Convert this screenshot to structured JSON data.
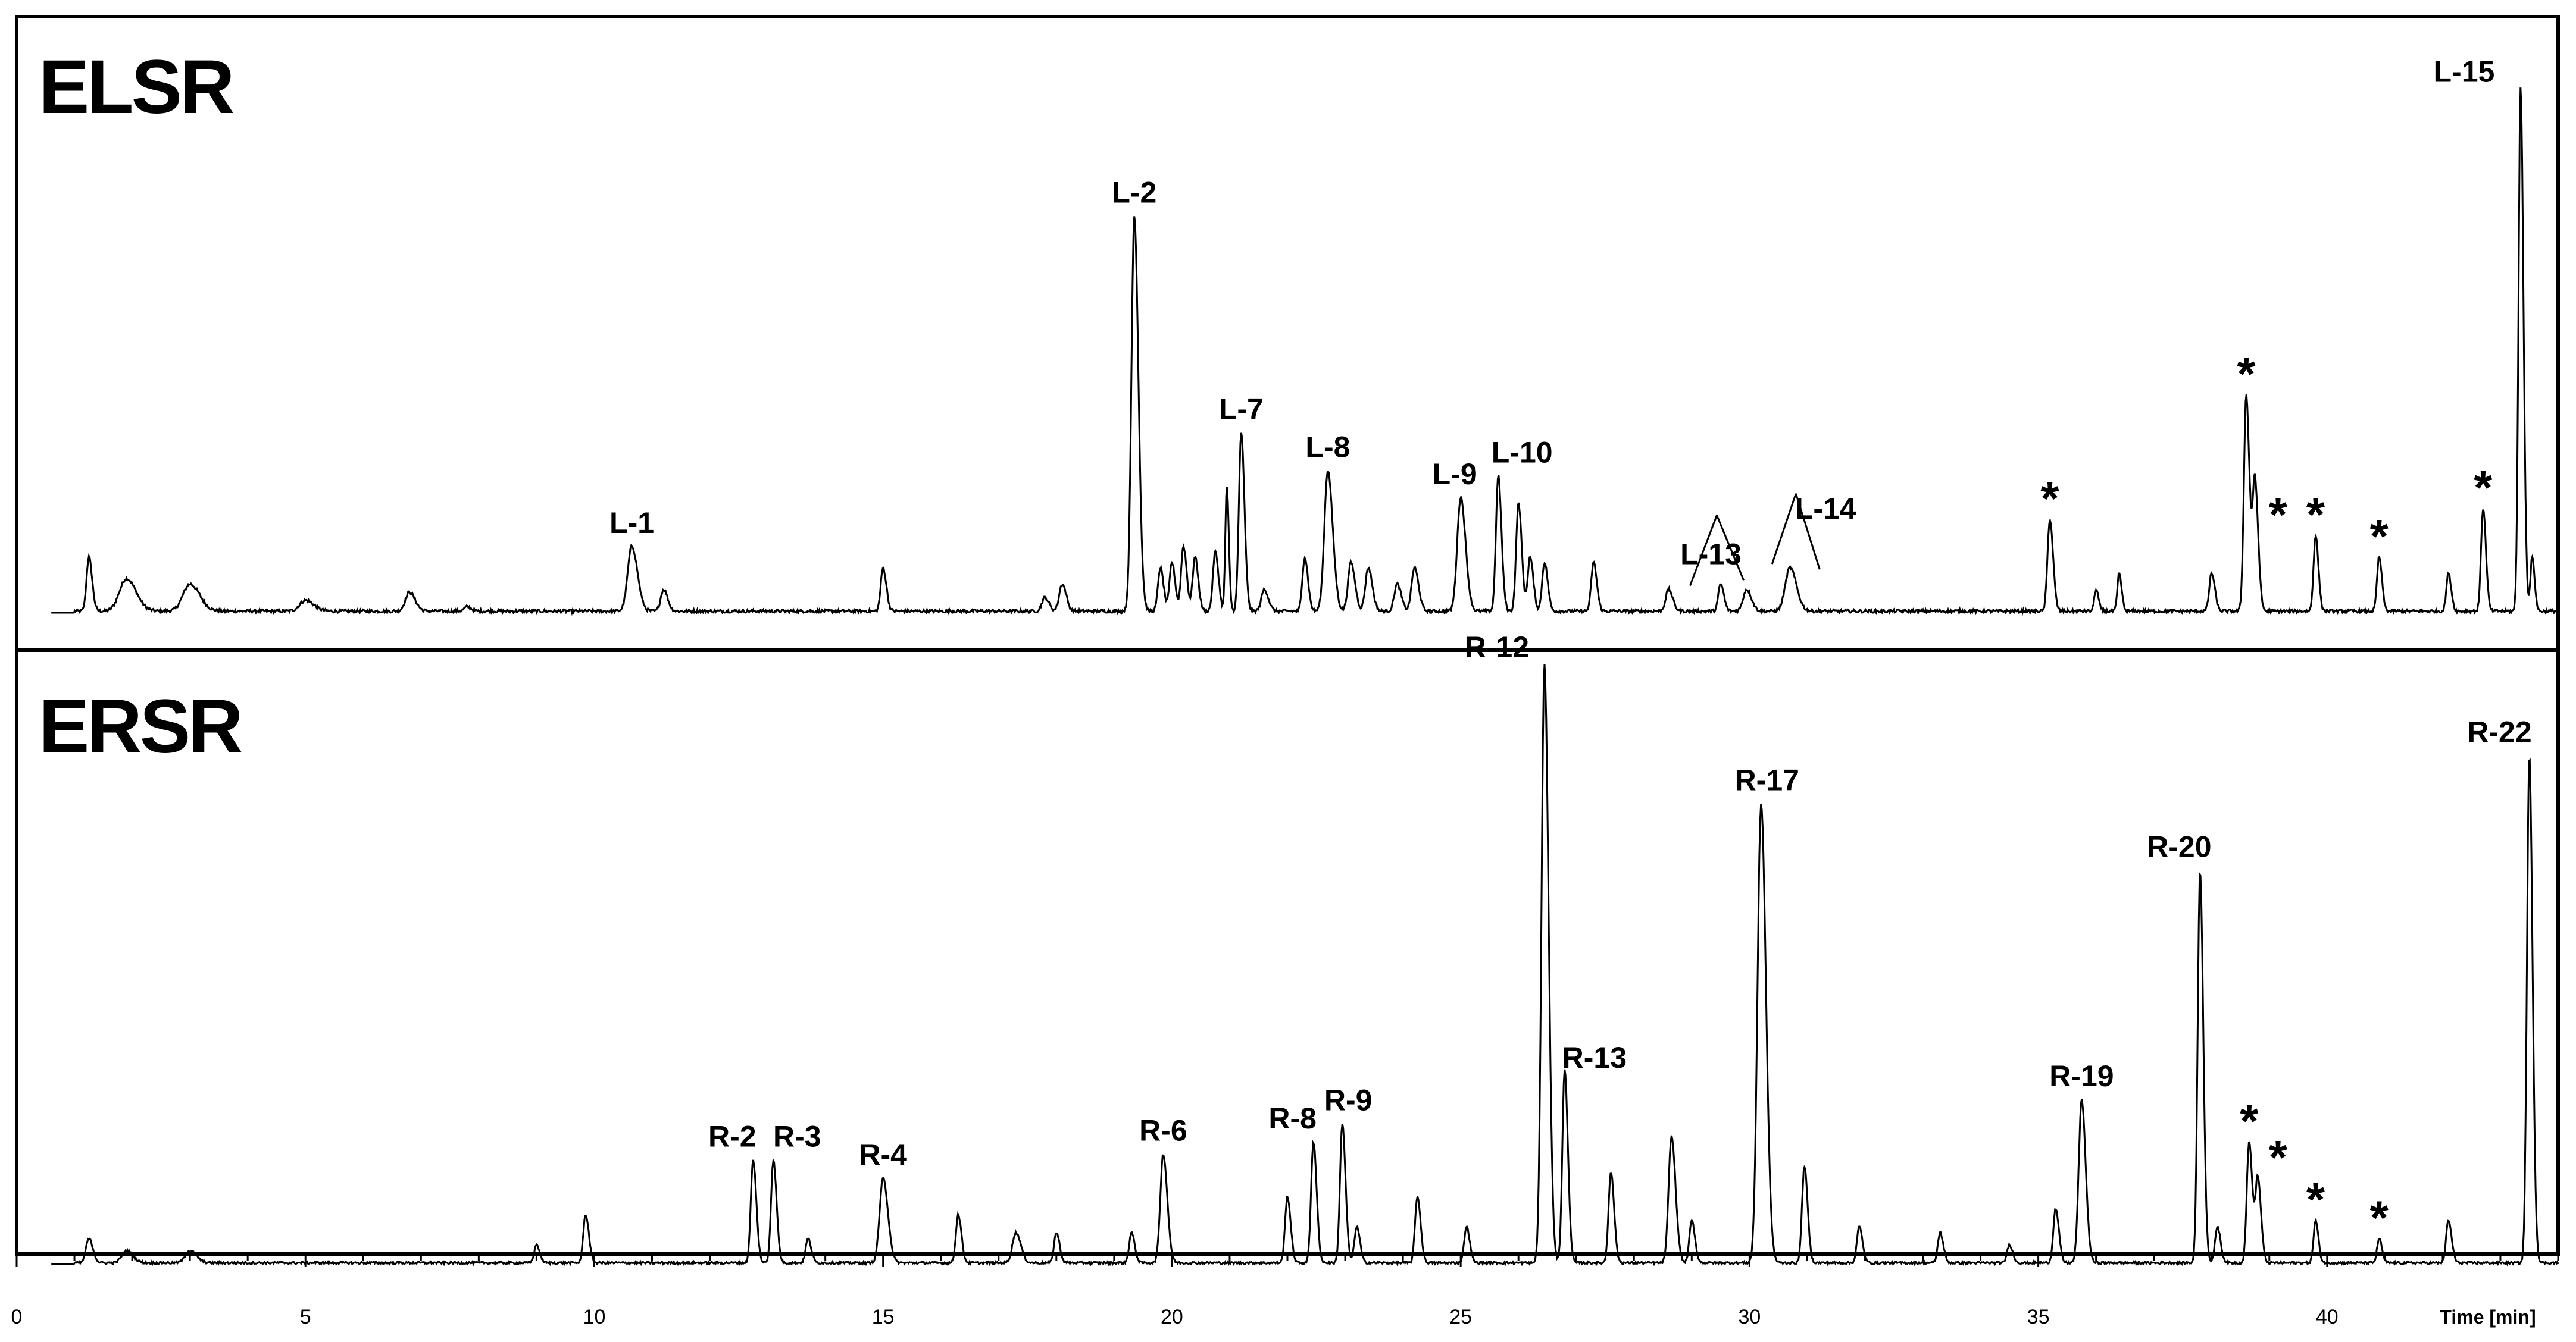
{
  "chart_data": {
    "type": "line",
    "xlabel": "Time [min]",
    "xlim": [
      0,
      44
    ],
    "x_ticks": [
      0,
      5,
      10,
      15,
      20,
      25,
      30,
      35,
      40
    ],
    "grid": false,
    "panels": [
      {
        "name": "ELSR",
        "ylim": [
          0,
          1
        ],
        "baseline_noise": 0.006,
        "peaks": [
          {
            "t": 1.25,
            "h": 0.1,
            "w": 0.04
          },
          {
            "t": 1.9,
            "h": 0.06,
            "w": 0.12
          },
          {
            "t": 3.0,
            "h": 0.05,
            "w": 0.12
          },
          {
            "t": 5.0,
            "h": 0.02,
            "w": 0.1
          },
          {
            "t": 6.8,
            "h": 0.035,
            "w": 0.07
          },
          {
            "t": 7.8,
            "h": 0.008,
            "w": 0.05
          },
          {
            "t": 10.65,
            "h": 0.12,
            "w": 0.07,
            "label": "L-1"
          },
          {
            "t": 11.2,
            "h": 0.04,
            "w": 0.05
          },
          {
            "t": 15.0,
            "h": 0.08,
            "w": 0.04
          },
          {
            "t": 17.8,
            "h": 0.025,
            "w": 0.05
          },
          {
            "t": 18.1,
            "h": 0.05,
            "w": 0.05
          },
          {
            "t": 19.35,
            "h": 0.73,
            "w": 0.05,
            "label": "L-2"
          },
          {
            "t": 19.8,
            "h": 0.08,
            "w": 0.04
          },
          {
            "t": 20.0,
            "h": 0.09,
            "w": 0.04
          },
          {
            "t": 20.2,
            "h": 0.12,
            "w": 0.04
          },
          {
            "t": 20.4,
            "h": 0.1,
            "w": 0.04
          },
          {
            "t": 20.75,
            "h": 0.11,
            "w": 0.04
          },
          {
            "t": 20.95,
            "h": 0.23,
            "w": 0.025
          },
          {
            "t": 21.2,
            "h": 0.33,
            "w": 0.04,
            "label": "L-7"
          },
          {
            "t": 21.6,
            "h": 0.04,
            "w": 0.05
          },
          {
            "t": 22.3,
            "h": 0.1,
            "w": 0.04
          },
          {
            "t": 22.7,
            "h": 0.26,
            "w": 0.06,
            "label": "L-8"
          },
          {
            "t": 23.1,
            "h": 0.09,
            "w": 0.05
          },
          {
            "t": 23.4,
            "h": 0.08,
            "w": 0.05
          },
          {
            "t": 23.9,
            "h": 0.05,
            "w": 0.05
          },
          {
            "t": 24.2,
            "h": 0.08,
            "w": 0.05
          },
          {
            "t": 25.0,
            "h": 0.21,
            "w": 0.06,
            "label": "L-9"
          },
          {
            "t": 25.65,
            "h": 0.25,
            "w": 0.04,
            "label": "L-10"
          },
          {
            "t": 26.0,
            "h": 0.2,
            "w": 0.04
          },
          {
            "t": 26.2,
            "h": 0.1,
            "w": 0.04
          },
          {
            "t": 26.45,
            "h": 0.09,
            "w": 0.04
          },
          {
            "t": 27.3,
            "h": 0.09,
            "w": 0.04
          },
          {
            "t": 28.6,
            "h": 0.04,
            "w": 0.05
          },
          {
            "t": 29.5,
            "h": 0.05,
            "w": 0.04
          },
          {
            "t": 29.95,
            "h": 0.04,
            "w": 0.06,
            "label": "L-13"
          },
          {
            "t": 30.7,
            "h": 0.08,
            "w": 0.08,
            "label": "L-14"
          },
          {
            "t": 35.2,
            "h": 0.17,
            "w": 0.04
          },
          {
            "t": 36.0,
            "h": 0.04,
            "w": 0.03
          },
          {
            "t": 36.4,
            "h": 0.07,
            "w": 0.03
          },
          {
            "t": 38.0,
            "h": 0.07,
            "w": 0.04
          },
          {
            "t": 38.6,
            "h": 0.4,
            "w": 0.04
          },
          {
            "t": 38.75,
            "h": 0.24,
            "w": 0.04
          },
          {
            "t": 39.8,
            "h": 0.14,
            "w": 0.035
          },
          {
            "t": 40.9,
            "h": 0.1,
            "w": 0.035
          },
          {
            "t": 42.1,
            "h": 0.07,
            "w": 0.035
          },
          {
            "t": 42.7,
            "h": 0.19,
            "w": 0.035
          },
          {
            "t": 43.35,
            "h": 0.97,
            "w": 0.035,
            "label": "L-15"
          },
          {
            "t": 43.55,
            "h": 0.1,
            "w": 0.03
          }
        ],
        "stars": [
          35.2,
          38.6,
          39.15,
          39.8,
          40.9,
          42.7
        ]
      },
      {
        "name": "ERSR",
        "ylim": [
          0,
          1
        ],
        "baseline_noise": 0.004,
        "peaks": [
          {
            "t": 1.25,
            "h": 0.04,
            "w": 0.05
          },
          {
            "t": 1.9,
            "h": 0.02,
            "w": 0.08
          },
          {
            "t": 3.0,
            "h": 0.02,
            "w": 0.08
          },
          {
            "t": 9.0,
            "h": 0.03,
            "w": 0.04
          },
          {
            "t": 9.85,
            "h": 0.08,
            "w": 0.04
          },
          {
            "t": 12.75,
            "h": 0.17,
            "w": 0.04,
            "label": "R-2"
          },
          {
            "t": 13.1,
            "h": 0.17,
            "w": 0.04,
            "label": "R-3"
          },
          {
            "t": 13.7,
            "h": 0.04,
            "w": 0.04
          },
          {
            "t": 15.0,
            "h": 0.14,
            "w": 0.06,
            "label": "R-4"
          },
          {
            "t": 16.3,
            "h": 0.08,
            "w": 0.04
          },
          {
            "t": 17.3,
            "h": 0.05,
            "w": 0.06
          },
          {
            "t": 18.0,
            "h": 0.05,
            "w": 0.04
          },
          {
            "t": 19.3,
            "h": 0.05,
            "w": 0.04
          },
          {
            "t": 19.85,
            "h": 0.18,
            "w": 0.05,
            "label": "R-6"
          },
          {
            "t": 22.0,
            "h": 0.11,
            "w": 0.04
          },
          {
            "t": 22.45,
            "h": 0.2,
            "w": 0.04,
            "label": "R-8"
          },
          {
            "t": 22.95,
            "h": 0.23,
            "w": 0.04,
            "label": "R-9"
          },
          {
            "t": 23.2,
            "h": 0.06,
            "w": 0.04
          },
          {
            "t": 24.25,
            "h": 0.11,
            "w": 0.04
          },
          {
            "t": 25.1,
            "h": 0.06,
            "w": 0.04
          },
          {
            "t": 26.45,
            "h": 0.99,
            "w": 0.05,
            "label": "R-12"
          },
          {
            "t": 26.8,
            "h": 0.32,
            "w": 0.04,
            "label": "R-13"
          },
          {
            "t": 27.6,
            "h": 0.15,
            "w": 0.04
          },
          {
            "t": 28.65,
            "h": 0.21,
            "w": 0.05
          },
          {
            "t": 29.0,
            "h": 0.07,
            "w": 0.04
          },
          {
            "t": 30.2,
            "h": 0.76,
            "w": 0.06,
            "label": "R-17"
          },
          {
            "t": 30.95,
            "h": 0.16,
            "w": 0.04
          },
          {
            "t": 31.9,
            "h": 0.06,
            "w": 0.04
          },
          {
            "t": 33.3,
            "h": 0.05,
            "w": 0.04
          },
          {
            "t": 34.5,
            "h": 0.03,
            "w": 0.04
          },
          {
            "t": 35.3,
            "h": 0.09,
            "w": 0.04
          },
          {
            "t": 35.75,
            "h": 0.27,
            "w": 0.05,
            "label": "R-19"
          },
          {
            "t": 37.8,
            "h": 0.65,
            "w": 0.04,
            "label": "R-20"
          },
          {
            "t": 38.1,
            "h": 0.06,
            "w": 0.04
          },
          {
            "t": 38.65,
            "h": 0.2,
            "w": 0.04
          },
          {
            "t": 38.8,
            "h": 0.14,
            "w": 0.04
          },
          {
            "t": 39.8,
            "h": 0.07,
            "w": 0.035
          },
          {
            "t": 40.9,
            "h": 0.04,
            "w": 0.035
          },
          {
            "t": 42.1,
            "h": 0.07,
            "w": 0.04
          },
          {
            "t": 43.5,
            "h": 0.84,
            "w": 0.04,
            "label": "R-22"
          }
        ],
        "stars": [
          38.65,
          39.15,
          39.8,
          40.9
        ]
      }
    ]
  }
}
